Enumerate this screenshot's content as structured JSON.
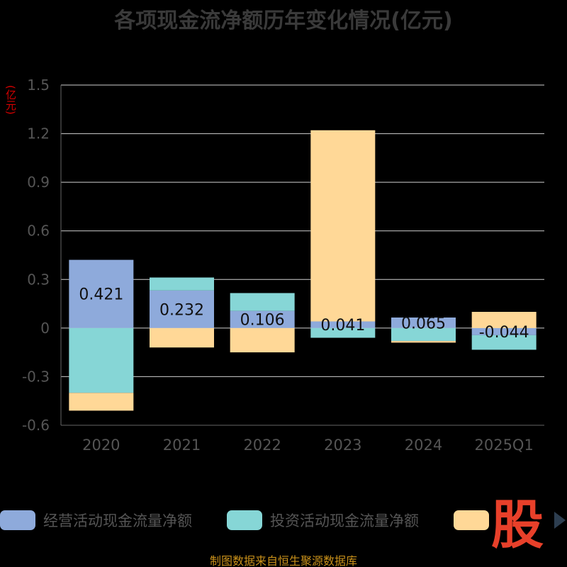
{
  "chart_data": {
    "type": "bar",
    "title": "各项现金流净额历年变化情况(亿元)",
    "ylabel": "(亿元)",
    "categories": [
      "2020",
      "2021",
      "2022",
      "2023",
      "2024",
      "2025Q1"
    ],
    "ylim": [
      -0.6,
      1.5
    ],
    "yticks": [
      1.5,
      1.2,
      0.9,
      0.6,
      0.3,
      0,
      -0.3,
      -0.6
    ],
    "ytick_labels": [
      "1.5",
      "1.2",
      "0.9",
      "0.6",
      "0.3",
      "0",
      "-0.3",
      "-0.6"
    ],
    "grid": true,
    "stacked": true,
    "legend_position": "bottom",
    "series": [
      {
        "name": "经营活动现金流量净额",
        "color": "#8eaadb",
        "values": [
          0.421,
          0.232,
          0.106,
          0.041,
          0.065,
          -0.044
        ],
        "labels": [
          "0.421",
          "0.232",
          "0.106",
          "0.041",
          "0.065",
          "-0.044"
        ]
      },
      {
        "name": "投资活动现金流量净额",
        "color": "#86d6d6",
        "values": [
          -0.4,
          0.08,
          0.11,
          -0.06,
          -0.08,
          -0.09
        ]
      },
      {
        "name": "",
        "color": "#ffd897",
        "values": [
          -0.11,
          -0.12,
          -0.15,
          1.18,
          -0.01,
          0.1
        ]
      }
    ]
  },
  "footer": {
    "source": "制图数据来自恒生聚源数据库",
    "logo_text": "股"
  }
}
